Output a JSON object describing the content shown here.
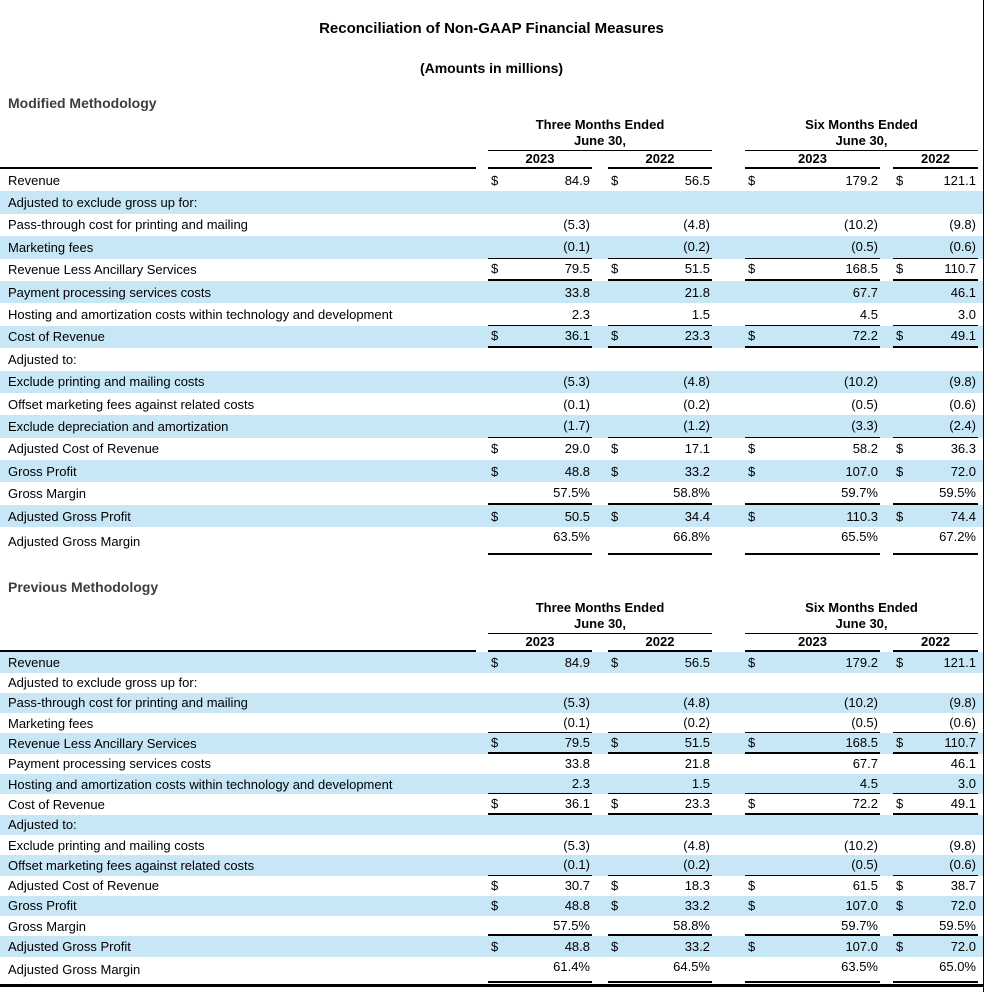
{
  "header": {
    "title": "Reconciliation of Non-GAAP Financial Measures",
    "subtitle": "(Amounts in millions)"
  },
  "colors": {
    "row_stripe": "#c7e7f7",
    "rule": "#000000"
  },
  "column_headers": {
    "groups": [
      {
        "line1": "Three Months Ended",
        "line2": "June 30,"
      },
      {
        "line1": "Six Months Ended",
        "line2": "June 30,"
      }
    ],
    "years": [
      "2023",
      "2022",
      "2023",
      "2022"
    ]
  },
  "tables": [
    {
      "heading": "Modified Methodology",
      "rows": [
        {
          "label": "Revenue",
          "dollar": true,
          "values": [
            "84.9",
            "56.5",
            "179.2",
            "121.1"
          ],
          "shade": "white",
          "rule": "none"
        },
        {
          "label": "Adjusted to exclude gross up for:",
          "dollar": false,
          "values": [
            "",
            "",
            "",
            ""
          ],
          "shade": "blue",
          "rule": "none"
        },
        {
          "label": "Pass-through cost for printing and mailing",
          "dollar": false,
          "values": [
            "(5.3)",
            "(4.8)",
            "(10.2)",
            "(9.8)"
          ],
          "shade": "white",
          "rule": "none"
        },
        {
          "label": "Marketing fees",
          "dollar": false,
          "values": [
            "(0.1)",
            "(0.2)",
            "(0.5)",
            "(0.6)"
          ],
          "shade": "blue",
          "rule": "thin"
        },
        {
          "label": "Revenue Less Ancillary Services",
          "dollar": true,
          "values": [
            "79.5",
            "51.5",
            "168.5",
            "110.7"
          ],
          "shade": "white",
          "rule": "thick"
        },
        {
          "label": "Payment processing services costs",
          "dollar": false,
          "values": [
            "33.8",
            "21.8",
            "67.7",
            "46.1"
          ],
          "shade": "blue",
          "rule": "none"
        },
        {
          "label": "Hosting and amortization costs within technology and development",
          "dollar": false,
          "values": [
            "2.3",
            "1.5",
            "4.5",
            "3.0"
          ],
          "shade": "white",
          "rule": "thin"
        },
        {
          "label": "Cost of Revenue",
          "dollar": true,
          "values": [
            "36.1",
            "23.3",
            "72.2",
            "49.1"
          ],
          "shade": "blue",
          "rule": "thick"
        },
        {
          "label": "Adjusted to:",
          "dollar": false,
          "values": [
            "",
            "",
            "",
            ""
          ],
          "shade": "white",
          "rule": "none"
        },
        {
          "label": "Exclude printing and mailing costs",
          "dollar": false,
          "values": [
            "(5.3)",
            "(4.8)",
            "(10.2)",
            "(9.8)"
          ],
          "shade": "blue",
          "rule": "none"
        },
        {
          "label": "Offset marketing fees against related costs",
          "dollar": false,
          "values": [
            "(0.1)",
            "(0.2)",
            "(0.5)",
            "(0.6)"
          ],
          "shade": "white",
          "rule": "none"
        },
        {
          "label": "Exclude depreciation and amortization",
          "dollar": false,
          "values": [
            "(1.7)",
            "(1.2)",
            "(3.3)",
            "(2.4)"
          ],
          "shade": "blue",
          "rule": "thin"
        },
        {
          "label": "Adjusted Cost of Revenue",
          "dollar": true,
          "values": [
            "29.0",
            "17.1",
            "58.2",
            "36.3"
          ],
          "shade": "white",
          "rule": "none"
        },
        {
          "label": "Gross Profit",
          "dollar": true,
          "values": [
            "48.8",
            "33.2",
            "107.0",
            "72.0"
          ],
          "shade": "blue",
          "rule": "none"
        },
        {
          "label": "Gross Margin",
          "dollar": false,
          "values": [
            "57.5%",
            "58.8%",
            "59.7%",
            "59.5%"
          ],
          "shade": "white",
          "rule": "thick"
        },
        {
          "label": "Adjusted Gross Profit",
          "dollar": true,
          "values": [
            "50.5",
            "34.4",
            "110.3",
            "74.4"
          ],
          "shade": "blue",
          "rule": "none"
        },
        {
          "label": "Adjusted Gross Margin",
          "dollar": false,
          "values": [
            "63.5%",
            "66.8%",
            "65.5%",
            "67.2%"
          ],
          "shade": "white",
          "rule": "thick-gap"
        }
      ]
    },
    {
      "heading": "Previous Methodology",
      "rows": [
        {
          "label": "Revenue",
          "dollar": true,
          "values": [
            "84.9",
            "56.5",
            "179.2",
            "121.1"
          ],
          "shade": "blue",
          "rule": "none"
        },
        {
          "label": "Adjusted to exclude gross up for:",
          "dollar": false,
          "values": [
            "",
            "",
            "",
            ""
          ],
          "shade": "white",
          "rule": "none"
        },
        {
          "label": "Pass-through cost for printing and mailing",
          "dollar": false,
          "values": [
            "(5.3)",
            "(4.8)",
            "(10.2)",
            "(9.8)"
          ],
          "shade": "blue",
          "rule": "none"
        },
        {
          "label": "Marketing fees",
          "dollar": false,
          "values": [
            "(0.1)",
            "(0.2)",
            "(0.5)",
            "(0.6)"
          ],
          "shade": "white",
          "rule": "thin"
        },
        {
          "label": "Revenue Less Ancillary Services",
          "dollar": true,
          "values": [
            "79.5",
            "51.5",
            "168.5",
            "110.7"
          ],
          "shade": "blue",
          "rule": "thick"
        },
        {
          "label": "Payment processing services costs",
          "dollar": false,
          "values": [
            "33.8",
            "21.8",
            "67.7",
            "46.1"
          ],
          "shade": "white",
          "rule": "none"
        },
        {
          "label": "Hosting and amortization costs within technology and development",
          "dollar": false,
          "values": [
            "2.3",
            "1.5",
            "4.5",
            "3.0"
          ],
          "shade": "blue",
          "rule": "thin"
        },
        {
          "label": "Cost of Revenue",
          "dollar": true,
          "values": [
            "36.1",
            "23.3",
            "72.2",
            "49.1"
          ],
          "shade": "white",
          "rule": "thick"
        },
        {
          "label": "Adjusted to:",
          "dollar": false,
          "values": [
            "",
            "",
            "",
            ""
          ],
          "shade": "blue",
          "rule": "none"
        },
        {
          "label": "Exclude printing and mailing costs",
          "dollar": false,
          "values": [
            "(5.3)",
            "(4.8)",
            "(10.2)",
            "(9.8)"
          ],
          "shade": "white",
          "rule": "none"
        },
        {
          "label": "Offset marketing fees against related costs",
          "dollar": false,
          "values": [
            "(0.1)",
            "(0.2)",
            "(0.5)",
            "(0.6)"
          ],
          "shade": "blue",
          "rule": "thin"
        },
        {
          "label": "Adjusted Cost of Revenue",
          "dollar": true,
          "values": [
            "30.7",
            "18.3",
            "61.5",
            "38.7"
          ],
          "shade": "white",
          "rule": "none"
        },
        {
          "label": "Gross Profit",
          "dollar": true,
          "values": [
            "48.8",
            "33.2",
            "107.0",
            "72.0"
          ],
          "shade": "blue",
          "rule": "none"
        },
        {
          "label": "Gross Margin",
          "dollar": false,
          "values": [
            "57.5%",
            "58.8%",
            "59.7%",
            "59.5%"
          ],
          "shade": "white",
          "rule": "thick"
        },
        {
          "label": "Adjusted Gross Profit",
          "dollar": true,
          "values": [
            "48.8",
            "33.2",
            "107.0",
            "72.0"
          ],
          "shade": "blue",
          "rule": "none"
        },
        {
          "label": "Adjusted Gross Margin",
          "dollar": false,
          "values": [
            "61.4%",
            "64.5%",
            "63.5%",
            "65.0%"
          ],
          "shade": "white",
          "rule": "thick-gap"
        }
      ]
    }
  ]
}
